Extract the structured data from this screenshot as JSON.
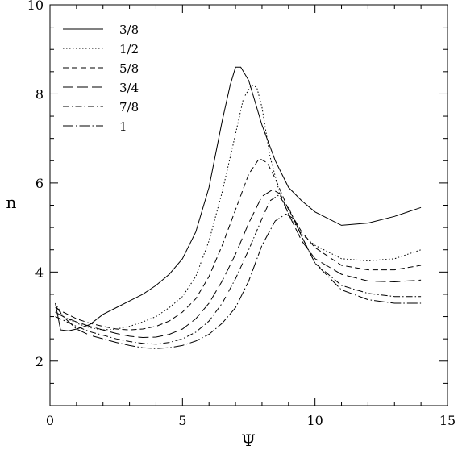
{
  "chart_data": {
    "type": "line",
    "title": "",
    "xlabel": "Ψ",
    "ylabel": "n",
    "xlim": [
      0,
      15
    ],
    "ylim": [
      1,
      10
    ],
    "xticks": [
      0,
      5,
      10,
      15
    ],
    "yticks": [
      2,
      4,
      6,
      8,
      10
    ],
    "grid": false,
    "legend_position": "top-left",
    "series": [
      {
        "name": "3/8",
        "dash": "solid",
        "x": [
          0.2,
          0.4,
          0.7,
          1,
          1.5,
          2,
          2.5,
          3,
          3.5,
          4,
          4.5,
          5,
          5.5,
          6,
          6.5,
          6.8,
          7,
          7.2,
          7.5,
          8,
          8.5,
          9,
          9.5,
          10,
          11,
          12,
          13,
          14
        ],
        "y": [
          3.3,
          2.7,
          2.68,
          2.72,
          2.82,
          3.05,
          3.2,
          3.35,
          3.5,
          3.7,
          3.95,
          4.3,
          4.9,
          5.9,
          7.4,
          8.2,
          8.6,
          8.6,
          8.3,
          7.3,
          6.5,
          5.9,
          5.6,
          5.35,
          5.05,
          5.1,
          5.25,
          5.45
        ]
      },
      {
        "name": "1/2",
        "dash": "dotted",
        "x": [
          0.2,
          0.5,
          1,
          1.5,
          2,
          2.5,
          3,
          3.5,
          4,
          4.5,
          5,
          5.5,
          6,
          6.5,
          7,
          7.3,
          7.6,
          7.8,
          8,
          8.3,
          8.7,
          9,
          9.5,
          10,
          11,
          12,
          13,
          14
        ],
        "y": [
          3.3,
          3.0,
          2.85,
          2.75,
          2.7,
          2.72,
          2.78,
          2.88,
          3.0,
          3.2,
          3.45,
          3.9,
          4.7,
          5.8,
          7.1,
          7.9,
          8.2,
          8.15,
          7.7,
          6.6,
          5.7,
          5.3,
          4.85,
          4.6,
          4.3,
          4.25,
          4.3,
          4.5
        ]
      },
      {
        "name": "5/8",
        "dash": "dashed",
        "x": [
          0.2,
          0.5,
          1,
          1.5,
          2,
          2.5,
          3,
          3.5,
          4,
          4.5,
          5,
          5.5,
          6,
          6.5,
          7,
          7.5,
          7.9,
          8.2,
          8.5,
          9,
          9.5,
          10,
          11,
          12,
          13,
          14
        ],
        "y": [
          3.2,
          3.1,
          2.95,
          2.85,
          2.78,
          2.72,
          2.7,
          2.72,
          2.78,
          2.9,
          3.1,
          3.4,
          3.9,
          4.6,
          5.4,
          6.2,
          6.55,
          6.45,
          6.1,
          5.4,
          4.9,
          4.55,
          4.15,
          4.05,
          4.05,
          4.15
        ]
      },
      {
        "name": "3/4",
        "dash": "long-dash",
        "x": [
          0.2,
          0.5,
          1,
          1.5,
          2,
          2.5,
          3,
          3.5,
          4,
          4.5,
          5,
          5.5,
          6,
          6.5,
          7,
          7.5,
          8,
          8.4,
          8.7,
          9,
          9.5,
          10,
          11,
          12,
          13,
          14
        ],
        "y": [
          3.1,
          3.0,
          2.88,
          2.78,
          2.7,
          2.62,
          2.56,
          2.53,
          2.54,
          2.6,
          2.72,
          2.95,
          3.3,
          3.8,
          4.4,
          5.1,
          5.7,
          5.85,
          5.75,
          5.3,
          4.7,
          4.3,
          3.95,
          3.8,
          3.78,
          3.82
        ]
      },
      {
        "name": "7/8",
        "dash": "dash-dot",
        "x": [
          0.2,
          0.5,
          1,
          1.5,
          2,
          2.5,
          3,
          3.5,
          4,
          4.5,
          5,
          5.5,
          6,
          6.5,
          7,
          7.5,
          8,
          8.3,
          8.6,
          9,
          9.5,
          10,
          11,
          12,
          13,
          14
        ],
        "y": [
          3.0,
          2.92,
          2.78,
          2.66,
          2.58,
          2.5,
          2.44,
          2.4,
          2.38,
          2.42,
          2.5,
          2.65,
          2.9,
          3.3,
          3.85,
          4.5,
          5.2,
          5.6,
          5.72,
          5.45,
          4.8,
          4.2,
          3.7,
          3.52,
          3.45,
          3.45
        ]
      },
      {
        "name": "1",
        "dash": "long-dash-dot",
        "x": [
          0.2,
          0.5,
          1,
          1.5,
          2,
          2.5,
          3,
          3.5,
          4,
          4.5,
          5,
          5.5,
          6,
          6.5,
          7,
          7.5,
          8,
          8.5,
          8.9,
          9.2,
          9.5,
          10,
          11,
          12,
          13,
          14
        ],
        "y": [
          3.25,
          3.0,
          2.72,
          2.58,
          2.5,
          2.42,
          2.35,
          2.3,
          2.28,
          2.3,
          2.35,
          2.45,
          2.6,
          2.85,
          3.2,
          3.8,
          4.6,
          5.15,
          5.3,
          5.2,
          4.8,
          4.2,
          3.6,
          3.38,
          3.3,
          3.3
        ]
      }
    ]
  }
}
